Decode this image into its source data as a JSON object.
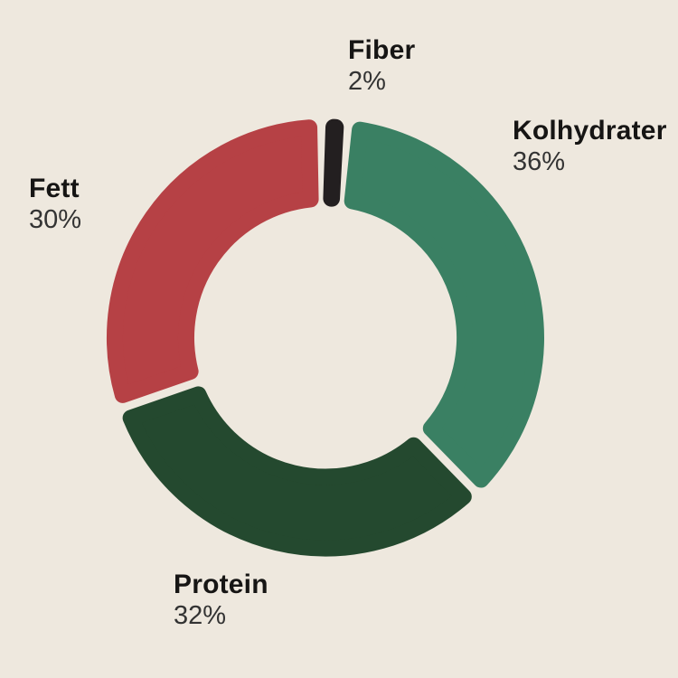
{
  "background_color": "#EEE8DE",
  "chart_data": {
    "type": "pie",
    "variant": "donut",
    "direction": "clockwise",
    "start_slice_centered_at_top": "Fiber",
    "legend_position": "labels-around-chart",
    "unit": "%",
    "slices": [
      {
        "label": "Fiber",
        "value": 2,
        "display": "2%",
        "color": "#231F20",
        "label_position": "top"
      },
      {
        "label": "Kolhydrater",
        "value": 36,
        "display": "36%",
        "color": "#3A8063",
        "label_position": "right"
      },
      {
        "label": "Protein",
        "value": 32,
        "display": "32%",
        "color": "#24492F",
        "label_position": "bottom-left"
      },
      {
        "label": "Fett",
        "value": 30,
        "display": "30%",
        "color": "#B64145",
        "label_position": "left"
      }
    ]
  }
}
